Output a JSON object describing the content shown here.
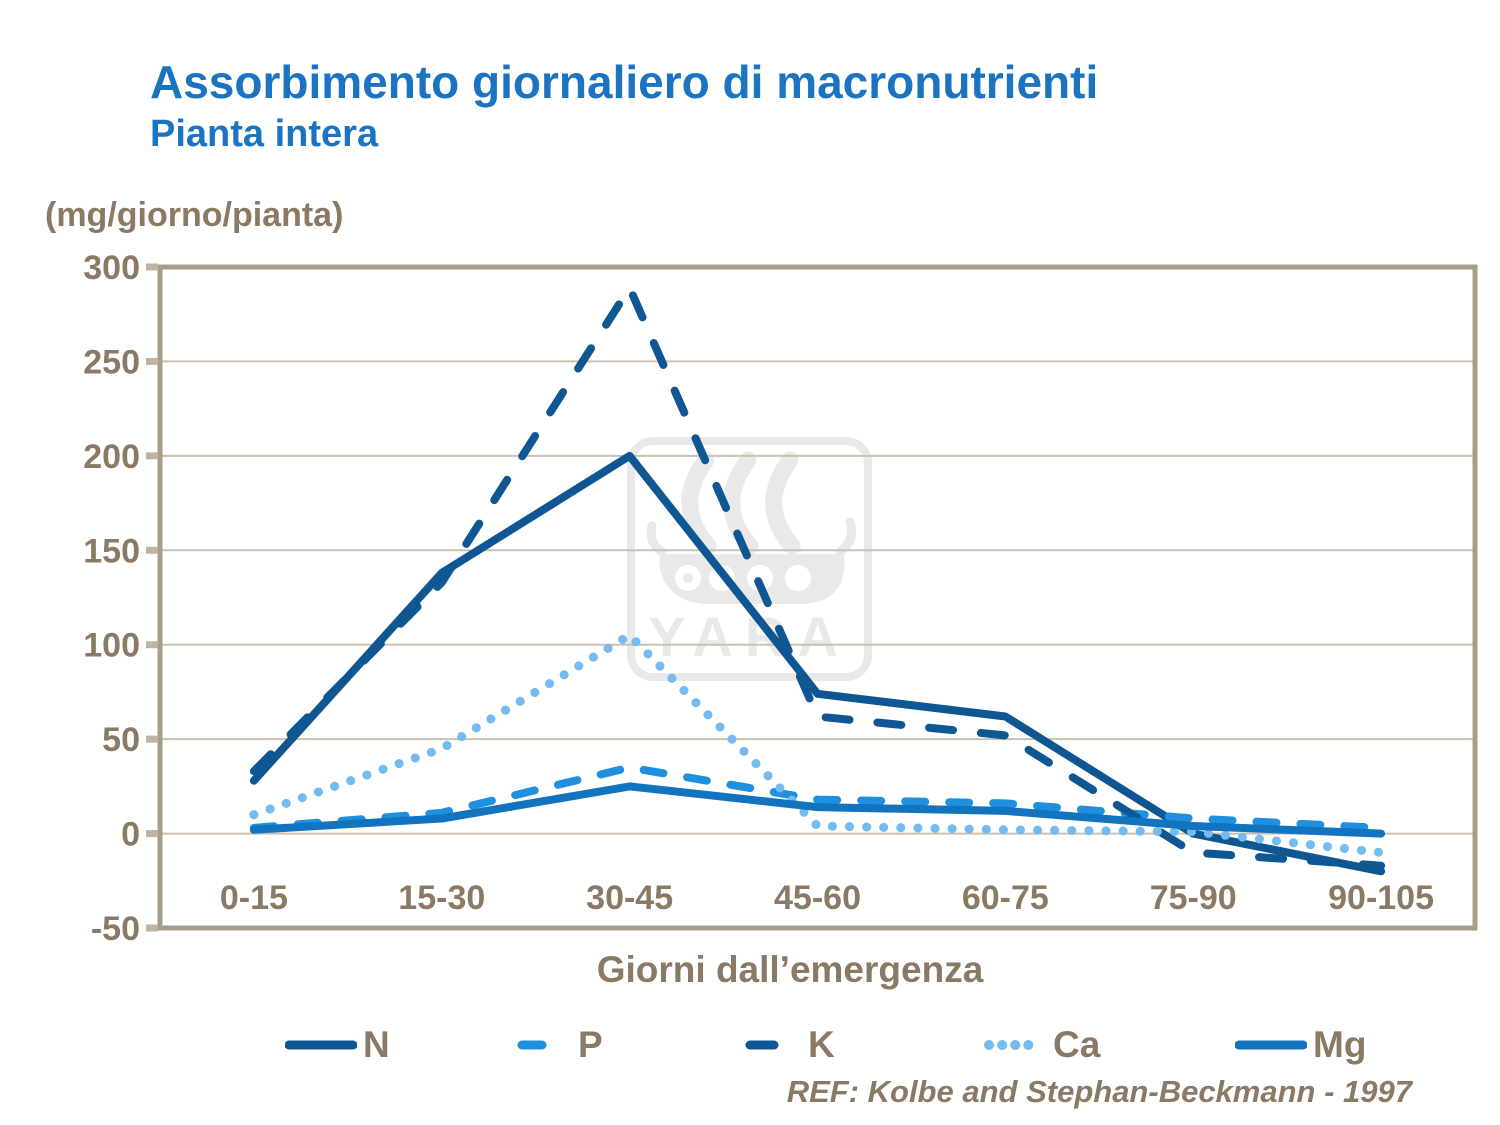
{
  "header": {
    "title": "Assorbimento giornaliero di macronutrienti",
    "subtitle": "Pianta intera"
  },
  "chart": {
    "unit_label": "(mg/giorno/pianta)",
    "x_title": "Giorni dall’emergenza",
    "ref_text": "REF: Kolbe and Stephan-Beckmann - 1997",
    "watermark_text": "YARA"
  },
  "chart_data": {
    "type": "line",
    "title": "Assorbimento giornaliero di macronutrienti",
    "subtitle": "Pianta intera",
    "ylabel": "(mg/giorno/pianta)",
    "xlabel": "Giorni dall’emergenza",
    "categories": [
      "0-15",
      "15-30",
      "30-45",
      "45-60",
      "60-75",
      "75-90",
      "90-105"
    ],
    "ylim": [
      -50,
      300
    ],
    "yticks": [
      300,
      250,
      200,
      150,
      100,
      50,
      0,
      -50
    ],
    "grid": true,
    "legend_position": "bottom",
    "series": [
      {
        "name": "N",
        "values": [
          28,
          138,
          200,
          74,
          62,
          0,
          -20
        ],
        "color": "#0F5792",
        "style": "solid"
      },
      {
        "name": "P",
        "values": [
          3,
          11,
          35,
          18,
          16,
          8,
          3
        ],
        "color": "#1F8FDF",
        "style": "dashed"
      },
      {
        "name": "K",
        "values": [
          33,
          133,
          289,
          62,
          52,
          -10,
          -17
        ],
        "color": "#0F5792",
        "style": "long-dash"
      },
      {
        "name": "Ca",
        "values": [
          10,
          45,
          105,
          4,
          2,
          1,
          -10
        ],
        "color": "#73BBF1",
        "style": "dotted"
      },
      {
        "name": "Mg",
        "values": [
          2,
          8,
          25,
          14,
          12,
          4,
          0
        ],
        "color": "#1273BE",
        "style": "solid"
      }
    ]
  },
  "colors": {
    "title_blue": "#1B74C2",
    "text_brown": "#8A7965",
    "frame": "#A89C8B",
    "gridline": "#CBC1B0",
    "tick": "#BFB4A3",
    "watermark": "#E9E9E9"
  }
}
